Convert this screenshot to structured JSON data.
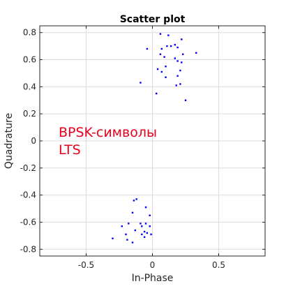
{
  "chart_data": {
    "type": "scatter",
    "title": "Scatter plot",
    "xlabel": "In-Phase",
    "ylabel": "Quadrature",
    "xlim": [
      -0.85,
      0.85
    ],
    "ylim": [
      -0.85,
      0.85
    ],
    "xticks": [
      -0.5,
      0,
      0.5
    ],
    "xtick_labels": [
      "-0.5",
      "0",
      "0.5"
    ],
    "yticks": [
      -0.8,
      -0.6,
      -0.4,
      -0.2,
      0,
      0.2,
      0.4,
      0.6,
      0.8
    ],
    "ytick_labels": [
      "-0.8",
      "-0.6",
      "-0.4",
      "-0.2",
      "0",
      "0.2",
      "0.4",
      "0.6",
      "0.8"
    ],
    "grid": true,
    "marker_color": "#0000ff",
    "annotation_color": "#e8001c",
    "annotation": [
      "BPSK-символы",
      "LTS"
    ],
    "series": [
      {
        "points": [
          [
            0.06,
            0.79
          ],
          [
            0.12,
            0.78
          ],
          [
            0.22,
            0.75
          ],
          [
            -0.04,
            0.68
          ],
          [
            0.07,
            0.68
          ],
          [
            0.14,
            0.7
          ],
          [
            0.11,
            0.7
          ],
          [
            0.17,
            0.71
          ],
          [
            0.19,
            0.69
          ],
          [
            0.33,
            0.65
          ],
          [
            0.23,
            0.64
          ],
          [
            0.06,
            0.64
          ],
          [
            0.09,
            0.62
          ],
          [
            0.17,
            0.61
          ],
          [
            0.19,
            0.59
          ],
          [
            0.22,
            0.58
          ],
          [
            0.04,
            0.53
          ],
          [
            0.1,
            0.55
          ],
          [
            0.07,
            0.51
          ],
          [
            0.21,
            0.52
          ],
          [
            0.19,
            0.48
          ],
          [
            0.1,
            0.47
          ],
          [
            -0.09,
            0.43
          ],
          [
            0.18,
            0.41
          ],
          [
            0.21,
            0.42
          ],
          [
            0.03,
            0.35
          ],
          [
            0.25,
            0.3
          ],
          [
            -0.14,
            -0.44
          ],
          [
            -0.12,
            -0.43
          ],
          [
            -0.05,
            -0.49
          ],
          [
            -0.15,
            -0.53
          ],
          [
            -0.02,
            -0.55
          ],
          [
            -0.18,
            -0.61
          ],
          [
            -0.23,
            -0.63
          ],
          [
            -0.09,
            -0.61
          ],
          [
            -0.05,
            -0.61
          ],
          [
            -0.08,
            -0.63
          ],
          [
            -0.02,
            -0.63
          ],
          [
            -0.13,
            -0.66
          ],
          [
            -0.06,
            -0.67
          ],
          [
            -0.04,
            -0.68
          ],
          [
            -0.01,
            -0.69
          ],
          [
            -0.08,
            -0.69
          ],
          [
            -0.2,
            -0.69
          ],
          [
            -0.06,
            -0.71
          ],
          [
            -0.3,
            -0.72
          ],
          [
            -0.19,
            -0.73
          ],
          [
            -0.15,
            -0.75
          ]
        ]
      }
    ]
  }
}
